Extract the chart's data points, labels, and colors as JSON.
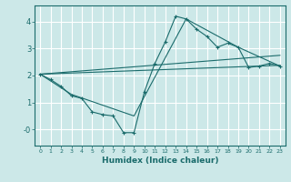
{
  "xlabel": "Humidex (Indice chaleur)",
  "bg_color": "#cce8e8",
  "line_color": "#1a6b6b",
  "grid_color": "#b8d8d8",
  "xlim": [
    -0.5,
    23.5
  ],
  "ylim": [
    -0.6,
    4.6
  ],
  "line1_x": [
    0,
    1,
    2,
    3,
    4,
    5,
    6,
    7,
    8,
    9,
    10,
    11,
    12,
    13,
    14,
    15,
    16,
    17,
    18,
    19,
    20,
    21,
    22,
    23
  ],
  "line1_y": [
    2.05,
    1.85,
    1.6,
    1.25,
    1.15,
    0.65,
    0.55,
    0.5,
    -0.12,
    -0.12,
    1.4,
    2.45,
    3.25,
    4.2,
    4.1,
    3.72,
    3.45,
    3.05,
    3.2,
    3.05,
    2.3,
    2.35,
    2.45,
    2.35
  ],
  "line2_x": [
    0,
    23
  ],
  "line2_y": [
    2.05,
    2.38
  ],
  "line3_x": [
    0,
    23
  ],
  "line3_y": [
    2.05,
    2.75
  ],
  "line4_x": [
    0,
    3,
    9,
    14,
    19,
    23
  ],
  "line4_y": [
    2.05,
    1.3,
    0.5,
    4.1,
    3.05,
    2.35
  ]
}
